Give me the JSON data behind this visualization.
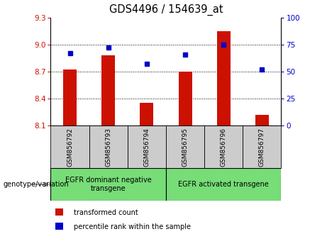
{
  "title": "GDS4496 / 154639_at",
  "samples": [
    "GSM856792",
    "GSM856793",
    "GSM856794",
    "GSM856795",
    "GSM856796",
    "GSM856797"
  ],
  "bar_values": [
    8.72,
    8.88,
    8.35,
    8.7,
    9.15,
    8.22
  ],
  "dot_values": [
    67,
    72,
    57,
    66,
    75,
    52
  ],
  "ylim_left": [
    8.1,
    9.3
  ],
  "ylim_right": [
    0,
    100
  ],
  "yticks_left": [
    8.1,
    8.4,
    8.7,
    9.0,
    9.3
  ],
  "yticks_right": [
    0,
    25,
    50,
    75,
    100
  ],
  "bar_color": "#cc1100",
  "dot_color": "#0000cc",
  "background_plot": "#ffffff",
  "grid_color": "#000000",
  "group1_label": "EGFR dominant negative\ntransgene",
  "group2_label": "EGFR activated transgene",
  "group1_indices": [
    0,
    1,
    2
  ],
  "group2_indices": [
    3,
    4,
    5
  ],
  "genotype_label": "genotype/variation",
  "legend_bar_label": "transformed count",
  "legend_dot_label": "percentile rank within the sample",
  "group_bg_color": "#77dd77",
  "tick_label_bg": "#cccccc",
  "bar_width": 0.35
}
